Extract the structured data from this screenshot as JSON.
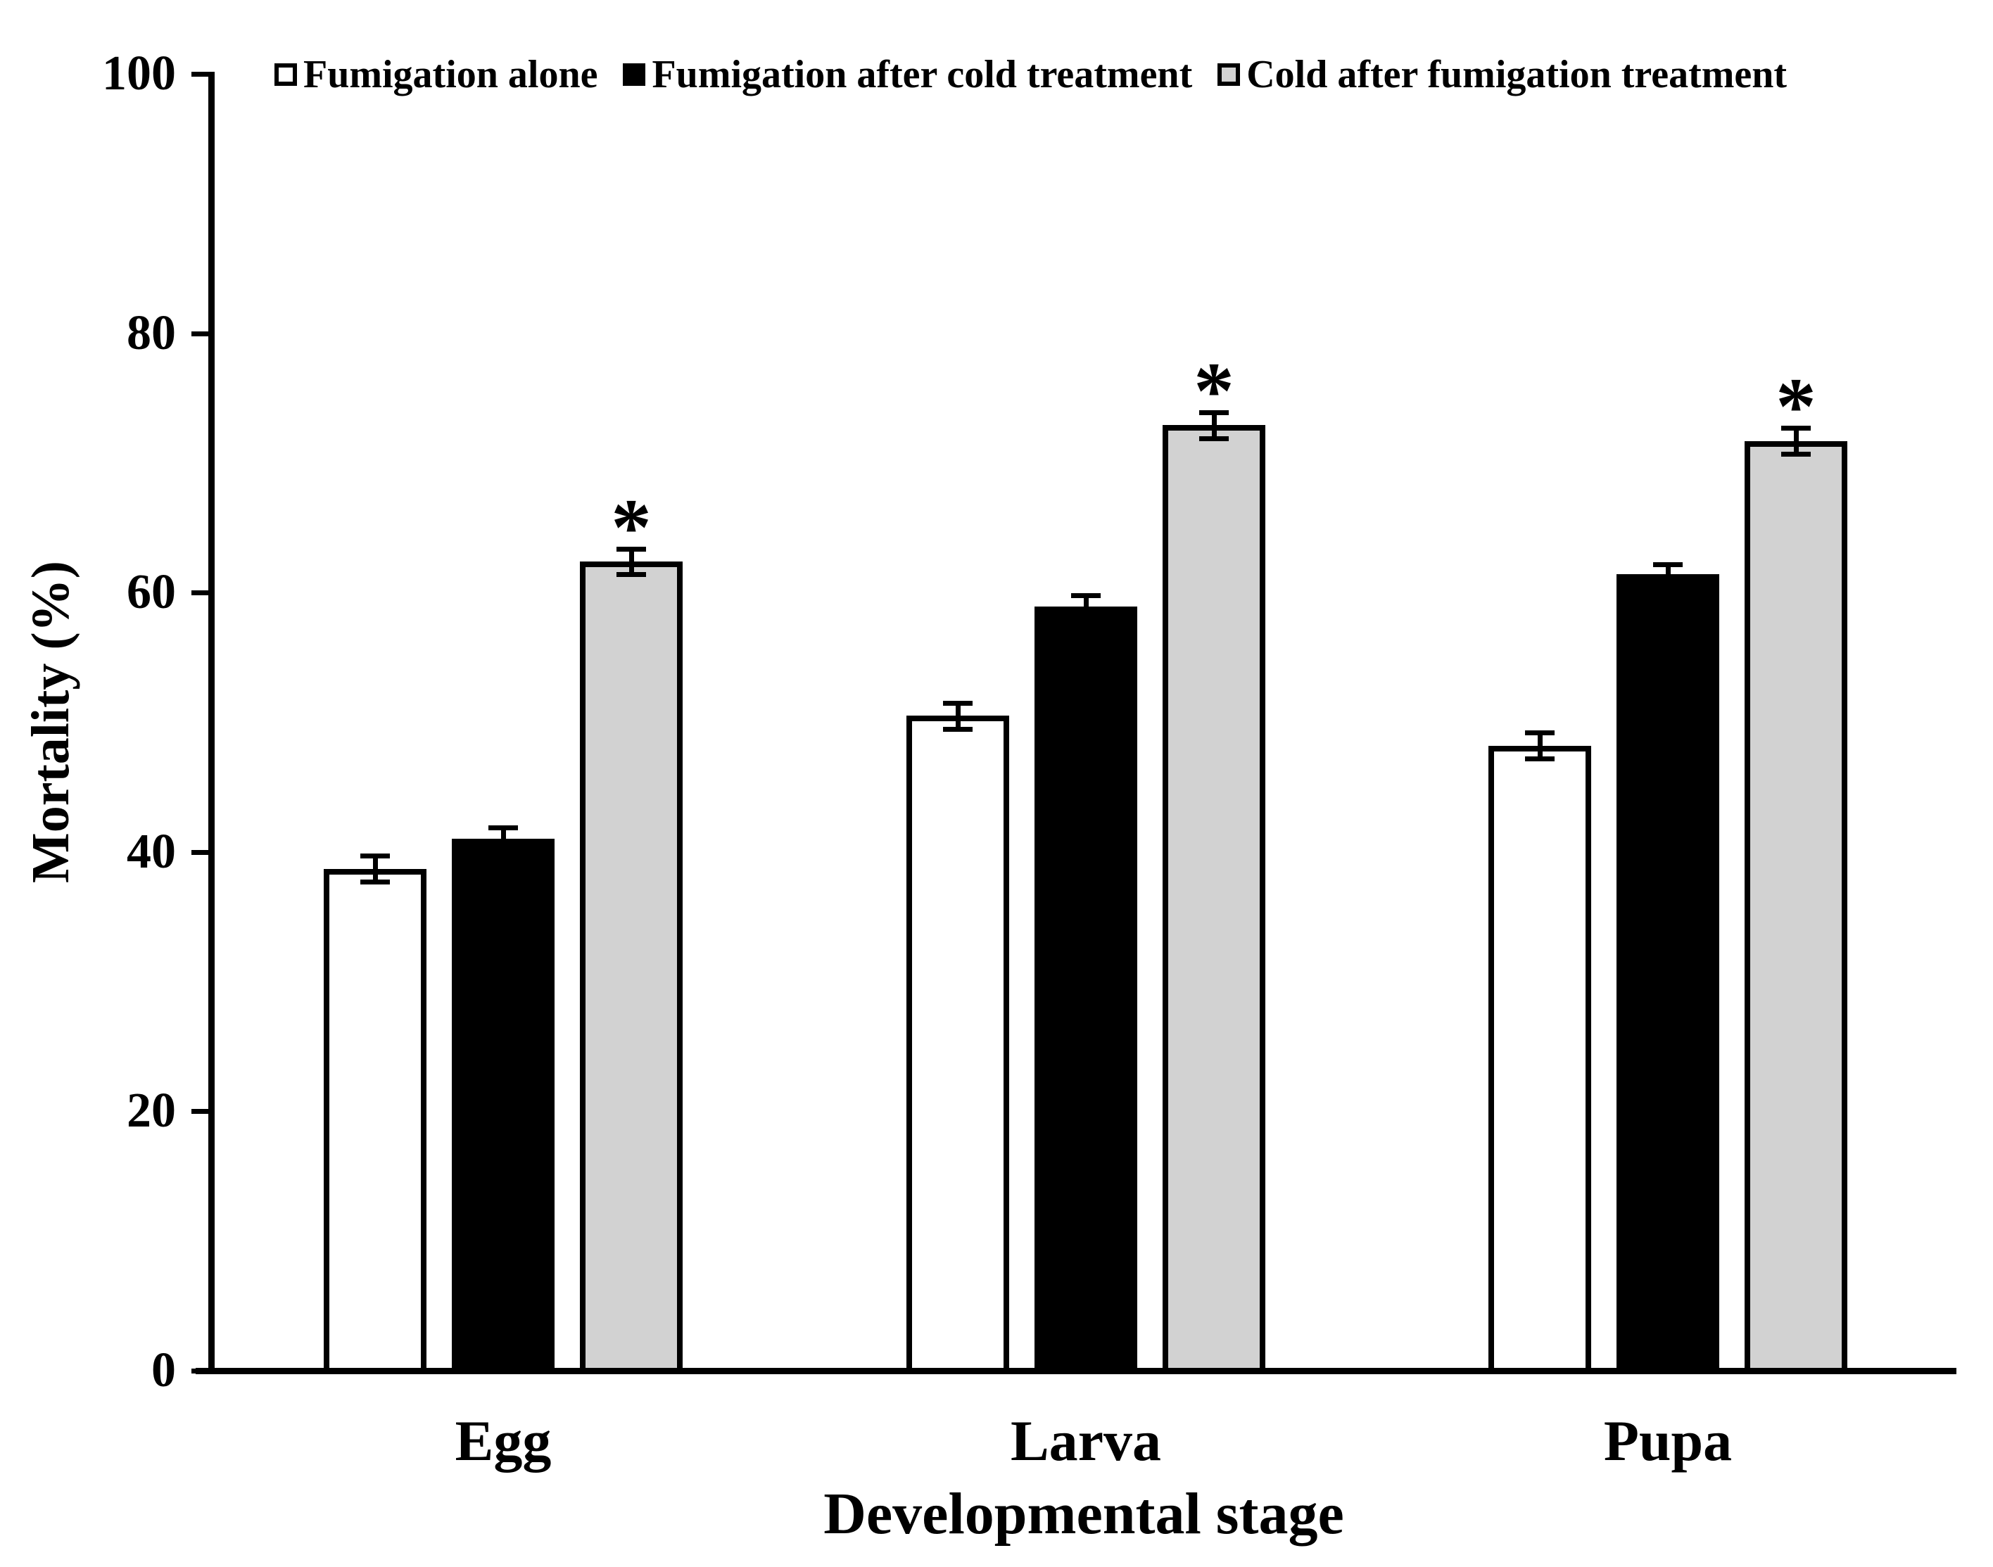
{
  "figure": {
    "background": "#ffffff",
    "text_color": "#000000",
    "significance_marker": "*",
    "significance_note": "Asterisk shown above every 'Cold after fumigation treatment' bar"
  },
  "chart_data": {
    "type": "bar",
    "title": "",
    "categories": [
      "Egg",
      "Larva",
      "Pupa"
    ],
    "series": [
      {
        "name": "Fumigation alone",
        "fill": "#ffffff",
        "border": "#000000",
        "values": [
          38.7,
          50.5,
          48.2
        ],
        "errors": [
          1.0,
          1.0,
          1.0
        ],
        "significant": [
          false,
          false,
          false
        ]
      },
      {
        "name": "Fumigation after cold treatment",
        "fill": "#000000",
        "border": "#000000",
        "values": [
          41.0,
          58.9,
          61.4
        ],
        "errors": [
          0.9,
          0.9,
          0.8
        ],
        "significant": [
          false,
          false,
          false
        ]
      },
      {
        "name": "Cold after fumigation treatment",
        "fill": "#d2d2d2",
        "border": "#000000",
        "values": [
          62.4,
          72.9,
          71.7
        ],
        "errors": [
          1.0,
          1.0,
          1.0
        ],
        "significant": [
          true,
          true,
          true
        ]
      }
    ],
    "xlabel": "Developmental stage",
    "ylabel": "Mortality (%)",
    "ylim": [
      0,
      100
    ],
    "yticks": [
      0,
      20,
      40,
      60,
      80,
      100
    ],
    "legend_position": "top",
    "grid": false,
    "error_bars": true
  }
}
